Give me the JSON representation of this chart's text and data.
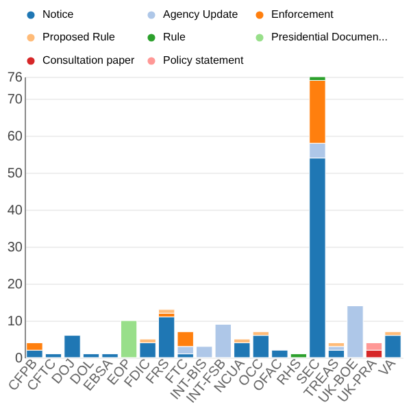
{
  "chart_data": {
    "type": "bar",
    "stacked": true,
    "legend": "top",
    "grid": "y",
    "categories": [
      "CFPB",
      "CFTC",
      "DOJ",
      "DOL",
      "EBSA",
      "EOP",
      "FDIC",
      "FRS",
      "FTC",
      "INT-BIS",
      "INT-FSB",
      "NCUA",
      "OCC",
      "OFAC",
      "RHS",
      "SEC",
      "TREAS",
      "UK-BOE",
      "UK-PRA",
      "VA"
    ],
    "ylim": [
      0,
      76
    ],
    "yticks": [
      0,
      10,
      20,
      30,
      40,
      50,
      60,
      70,
      76
    ],
    "series": [
      {
        "name": "Notice",
        "color": "#1f77b4",
        "values": [
          2,
          1,
          6,
          1,
          1,
          null,
          4,
          11,
          1,
          null,
          null,
          4,
          6,
          2,
          null,
          54,
          2,
          null,
          null,
          6
        ]
      },
      {
        "name": "Agency Update",
        "color": "#aec7e8",
        "values": [
          null,
          null,
          null,
          null,
          null,
          null,
          null,
          null,
          2,
          3,
          9,
          null,
          null,
          null,
          null,
          4,
          1,
          14,
          null,
          null
        ]
      },
      {
        "name": "Enforcement",
        "color": "#ff7f0e",
        "values": [
          2,
          null,
          null,
          null,
          null,
          null,
          null,
          1,
          4,
          null,
          null,
          null,
          null,
          null,
          null,
          17,
          null,
          null,
          null,
          null
        ]
      },
      {
        "name": "Proposed Rule",
        "color": "#ffbb78",
        "values": [
          null,
          null,
          null,
          null,
          null,
          null,
          1,
          1,
          null,
          null,
          null,
          1,
          1,
          null,
          null,
          null,
          1,
          null,
          null,
          1
        ]
      },
      {
        "name": "Rule",
        "color": "#2ca02c",
        "values": [
          null,
          null,
          null,
          null,
          null,
          null,
          null,
          null,
          null,
          null,
          null,
          null,
          null,
          null,
          1,
          1,
          null,
          null,
          null,
          null
        ]
      },
      {
        "name": "Presidential Documen...",
        "color": "#98df8a",
        "values": [
          null,
          null,
          null,
          null,
          null,
          10,
          null,
          null,
          null,
          null,
          null,
          null,
          null,
          null,
          null,
          null,
          null,
          null,
          null,
          null
        ]
      },
      {
        "name": "Consultation paper",
        "color": "#d62728",
        "values": [
          null,
          null,
          null,
          null,
          null,
          null,
          null,
          null,
          null,
          null,
          null,
          null,
          null,
          null,
          null,
          null,
          null,
          null,
          2,
          null
        ]
      },
      {
        "name": "Policy statement",
        "color": "#ff9896",
        "values": [
          null,
          null,
          null,
          null,
          null,
          null,
          null,
          null,
          null,
          null,
          null,
          null,
          null,
          null,
          null,
          null,
          null,
          null,
          2,
          null
        ]
      }
    ]
  }
}
